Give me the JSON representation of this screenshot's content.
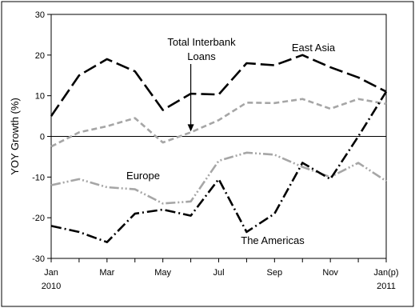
{
  "chart_data": {
    "type": "line",
    "ylabel": "YOY Growth (%)",
    "ylim": [
      -30,
      30
    ],
    "yticks": [
      -30,
      -20,
      -10,
      0,
      10,
      20,
      30
    ],
    "xlim": [
      0,
      12
    ],
    "x": [
      0,
      1,
      2,
      3,
      4,
      5,
      6,
      7,
      8,
      9,
      10,
      11,
      12
    ],
    "xtick_labels": [
      {
        "x": 0,
        "line1": "Jan",
        "line2": "2010"
      },
      {
        "x": 2,
        "line1": "Mar",
        "line2": ""
      },
      {
        "x": 4,
        "line1": "May",
        "line2": ""
      },
      {
        "x": 6,
        "line1": "Jul",
        "line2": ""
      },
      {
        "x": 8,
        "line1": "Sep",
        "line2": ""
      },
      {
        "x": 10,
        "line1": "Nov",
        "line2": ""
      },
      {
        "x": 12,
        "line1": "Jan(p)",
        "line2": "2011"
      }
    ],
    "series": [
      {
        "name": "East Asia",
        "color": "#000000",
        "dash": "long-dash",
        "values": [
          5,
          15,
          19,
          16,
          6.5,
          10.5,
          10.3,
          18,
          17.5,
          20,
          17,
          14.5,
          11
        ]
      },
      {
        "name": "Total Interbank Loans",
        "color": "#a6a6a6",
        "dash": "short-dash",
        "values": [
          -2.5,
          1,
          2.5,
          4.5,
          -1.5,
          1,
          4,
          8.3,
          8.2,
          9.2,
          6.8,
          9.2,
          8
        ]
      },
      {
        "name": "Europe",
        "color": "#a6a6a6",
        "dash": "dash-dot-dot",
        "values": [
          -12,
          -10.5,
          -12.5,
          -13,
          -16.5,
          -16,
          -6,
          -4,
          -4.5,
          -7.5,
          -10,
          -6.5,
          -11
        ]
      },
      {
        "name": "The Americas",
        "color": "#000000",
        "dash": "dash-dot",
        "values": [
          -22,
          -23.5,
          -26,
          -19,
          -18,
          -19.5,
          -10.5,
          -23.5,
          -19,
          -6.5,
          -10.5,
          0,
          11
        ]
      }
    ],
    "annotations": {
      "total_interbank_line1": "Total Interbank",
      "total_interbank_line2": "Loans",
      "east_asia": "East Asia",
      "europe": "Europe",
      "americas": "The Americas"
    },
    "arrow_target": {
      "x": 5,
      "y": 1
    },
    "grid": false,
    "zero_line": true,
    "legend": "none"
  }
}
